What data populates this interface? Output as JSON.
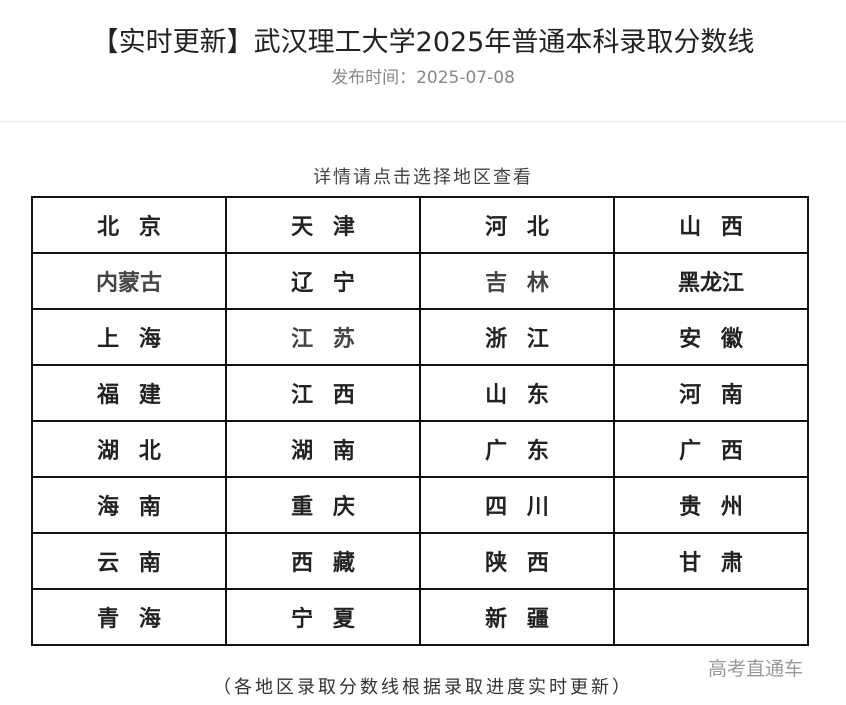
{
  "header": {
    "title": "【实时更新】武汉理工大学2025年普通本科录取分数线",
    "date": "发布时间：2025-07-08"
  },
  "hint": "详情请点击选择地区查看",
  "regions": [
    [
      "北京",
      "天津",
      "河北",
      "山西"
    ],
    [
      "内蒙古",
      "辽宁",
      "吉林",
      "黑龙江"
    ],
    [
      "上海",
      "江苏",
      "浙江",
      "安徽"
    ],
    [
      "福建",
      "江西",
      "山东",
      "河南"
    ],
    [
      "湖北",
      "湖南",
      "广东",
      "广西"
    ],
    [
      "海南",
      "重庆",
      "四川",
      "贵州"
    ],
    [
      "云南",
      "西藏",
      "陕西",
      "甘肃"
    ],
    [
      "青海",
      "宁夏",
      "新疆",
      ""
    ]
  ],
  "footer": "（各地区录取分数线根据录取进度实时更新）",
  "watermark": "高考直通车"
}
